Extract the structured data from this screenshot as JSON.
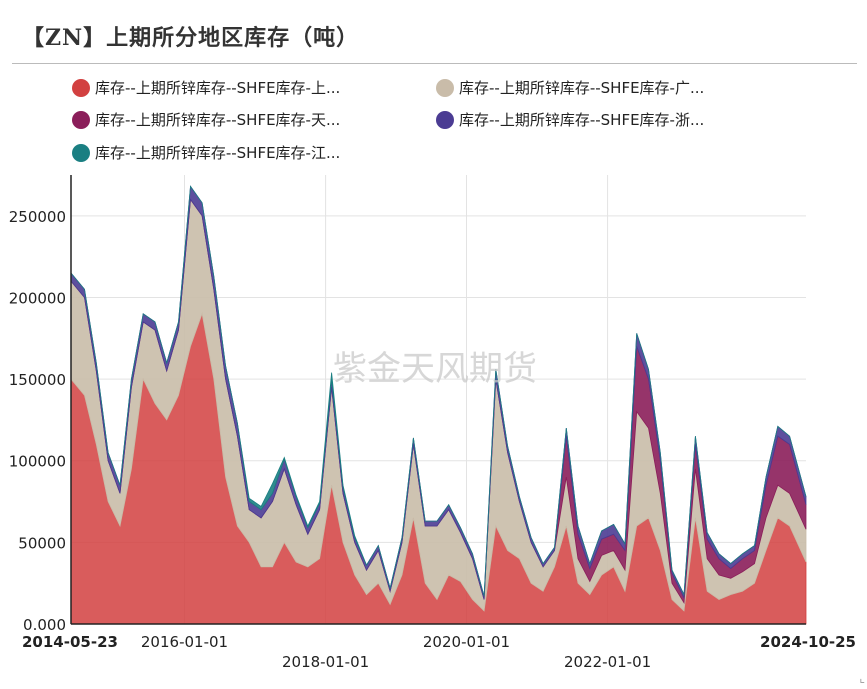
{
  "header": {
    "title": "【ZN】上期所分地区库存（吨）"
  },
  "watermark": "紫金天风期货",
  "colors": {
    "shanghai": "#d24040",
    "guangdong": "#c9bca9",
    "tianjin": "#8b1e5a",
    "zhejiang": "#4b3c93",
    "jiangsu": "#1a7f82"
  },
  "chart_data": {
    "type": "area",
    "stacked": true,
    "title": "【ZN】上期所分地区库存（吨）",
    "xlabel": "",
    "ylabel": "",
    "ylim": [
      0,
      275000
    ],
    "yticks": [
      "0.000",
      "50000",
      "100000",
      "150000",
      "200000",
      "250000"
    ],
    "xlim": [
      "2014-05-23",
      "2024-10-25"
    ],
    "xticks": [
      "2014-05-23",
      "2016-01-01",
      "2018-01-01",
      "2020-01-01",
      "2022-01-01",
      "2024-10-25"
    ],
    "grid": true,
    "legend_position": "top",
    "x": [
      "2014-05-23",
      "2014-08-01",
      "2014-10-01",
      "2014-12-01",
      "2015-02-01",
      "2015-04-01",
      "2015-06-01",
      "2015-08-01",
      "2015-10-01",
      "2015-12-01",
      "2016-02-01",
      "2016-04-01",
      "2016-06-01",
      "2016-08-01",
      "2016-10-01",
      "2016-12-01",
      "2017-02-01",
      "2017-04-01",
      "2017-06-01",
      "2017-08-01",
      "2017-10-01",
      "2017-12-01",
      "2018-02-01",
      "2018-04-01",
      "2018-06-01",
      "2018-08-01",
      "2018-10-01",
      "2018-12-01",
      "2019-02-01",
      "2019-04-01",
      "2019-06-01",
      "2019-08-01",
      "2019-10-01",
      "2019-12-01",
      "2020-02-01",
      "2020-04-01",
      "2020-06-01",
      "2020-08-01",
      "2020-10-01",
      "2020-12-01",
      "2021-02-01",
      "2021-04-01",
      "2021-06-01",
      "2021-08-01",
      "2021-10-01",
      "2021-12-01",
      "2022-02-01",
      "2022-04-01",
      "2022-06-01",
      "2022-08-01",
      "2022-10-01",
      "2022-12-01",
      "2023-02-01",
      "2023-04-01",
      "2023-06-01",
      "2023-08-01",
      "2023-10-01",
      "2023-12-01",
      "2024-02-01",
      "2024-04-01",
      "2024-06-01",
      "2024-08-01",
      "2024-10-25"
    ],
    "series": [
      {
        "name": "库存--上期所锌库存--SHFE库存-上...",
        "color_key": "shanghai",
        "values": [
          150000,
          140000,
          110000,
          75000,
          60000,
          95000,
          150000,
          135000,
          125000,
          140000,
          170000,
          190000,
          150000,
          90000,
          60000,
          50000,
          35000,
          35000,
          50000,
          38000,
          35000,
          40000,
          85000,
          50000,
          30000,
          18000,
          25000,
          12000,
          30000,
          65000,
          25000,
          15000,
          30000,
          26000,
          15000,
          8000,
          60000,
          45000,
          40000,
          25000,
          20000,
          35000,
          60000,
          25000,
          18000,
          30000,
          35000,
          20000,
          60000,
          65000,
          45000,
          15000,
          8000,
          65000,
          20000,
          15000,
          18000,
          20000,
          25000,
          45000,
          65000,
          60000,
          38000
        ]
      },
      {
        "name": "库存--上期所锌库存--SHFE库存-广...",
        "color_key": "guangdong",
        "values": [
          60000,
          60000,
          45000,
          25000,
          20000,
          50000,
          35000,
          45000,
          30000,
          40000,
          90000,
          60000,
          55000,
          60000,
          55000,
          20000,
          30000,
          40000,
          45000,
          35000,
          20000,
          30000,
          60000,
          30000,
          20000,
          15000,
          20000,
          8000,
          20000,
          45000,
          35000,
          45000,
          40000,
          30000,
          25000,
          7000,
          90000,
          60000,
          35000,
          25000,
          15000,
          10000,
          30000,
          15000,
          8000,
          12000,
          10000,
          13000,
          70000,
          55000,
          35000,
          10000,
          5000,
          30000,
          20000,
          15000,
          10000,
          12000,
          12000,
          20000,
          20000,
          20000,
          20000
        ]
      },
      {
        "name": "库存--上期所锌库存--SHFE库存-天...",
        "color_key": "tianjin",
        "values": [
          0,
          0,
          0,
          0,
          0,
          0,
          0,
          0,
          0,
          0,
          0,
          0,
          0,
          0,
          0,
          0,
          0,
          0,
          0,
          0,
          0,
          0,
          0,
          0,
          0,
          0,
          0,
          0,
          0,
          0,
          0,
          0,
          0,
          0,
          0,
          0,
          0,
          0,
          0,
          0,
          0,
          0,
          25000,
          15000,
          8000,
          10000,
          10000,
          12000,
          40000,
          30000,
          20000,
          6000,
          3000,
          15000,
          12000,
          10000,
          6000,
          8000,
          8000,
          20000,
          30000,
          30000,
          15000
        ]
      },
      {
        "name": "库存--上期所锌库存--SHFE库存-浙...",
        "color_key": "zhejiang",
        "values": [
          5000,
          5000,
          5000,
          5000,
          5000,
          5000,
          5000,
          5000,
          5000,
          5000,
          8000,
          8000,
          8000,
          8000,
          8000,
          5000,
          5000,
          5000,
          6000,
          5000,
          4000,
          4000,
          5000,
          4000,
          3000,
          3000,
          3000,
          2000,
          3000,
          4000,
          3000,
          3000,
          3000,
          3000,
          3000,
          2000,
          6000,
          4000,
          3000,
          3000,
          2000,
          2000,
          5000,
          5000,
          3000,
          5000,
          6000,
          4000,
          8000,
          6000,
          5000,
          2000,
          2000,
          5000,
          4000,
          3000,
          3000,
          3000,
          3000,
          5000,
          6000,
          5000,
          5000
        ]
      },
      {
        "name": "库存--上期所锌库存--SHFE库存-江...",
        "color_key": "jiangsu",
        "values": [
          0,
          0,
          0,
          0,
          0,
          0,
          0,
          0,
          0,
          0,
          0,
          0,
          0,
          0,
          0,
          2000,
          2000,
          6000,
          1000,
          1000,
          1000,
          1000,
          4000,
          1000,
          1000,
          0,
          0,
          0,
          0,
          0,
          0,
          0,
          0,
          0,
          0,
          0,
          0,
          0,
          0,
          0,
          0,
          0,
          0,
          0,
          0,
          0,
          0,
          0,
          0,
          0,
          0,
          0,
          0,
          0,
          0,
          0,
          0,
          0,
          0,
          0,
          0,
          0,
          0
        ]
      }
    ]
  }
}
